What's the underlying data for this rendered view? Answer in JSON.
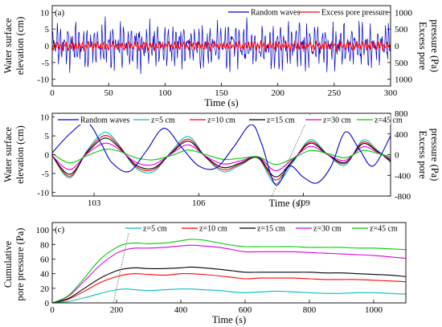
{
  "chart_data": [
    {
      "panel": "(a)",
      "type": "line",
      "xlabel": "Time (s)",
      "ylabel_left": "Water surface elevation (cm)",
      "ylabel_left_lines": [
        "Water surface",
        "elevation (cm)"
      ],
      "ylabel_right": "Excess pore pressure (Pa)",
      "ylabel_right_lines": [
        "Excess pore",
        "pressure (Pa)"
      ],
      "xlim": [
        0,
        300
      ],
      "ylim_left": [
        -12,
        12
      ],
      "ylim_right": [
        1200,
        -1200
      ],
      "xticks": [
        0,
        50,
        100,
        150,
        200,
        250,
        300
      ],
      "yticks_left": [
        -10,
        -5,
        0,
        5,
        10
      ],
      "yticks_right": [
        -1000,
        -500,
        0,
        500,
        1000
      ],
      "ytick_labels_right": [
        "1000",
        "500",
        "0",
        "500",
        "1000"
      ],
      "legend_position": "top-right",
      "series": [
        {
          "name": "Random waves",
          "color": "#0000cc",
          "axis": "left",
          "description": "irregular random waves, amplitude up to ~10 cm"
        },
        {
          "name": "Excess pore pressure",
          "color": "#ff0000",
          "axis": "right",
          "description": "small oscillation around 0, within about ±150 Pa"
        }
      ]
    },
    {
      "panel": "(b)",
      "type": "line",
      "xlabel": "Time (s)",
      "ylabel_left": "Water surface elevation (cm)",
      "ylabel_left_lines": [
        "Water surface",
        "elevation (cm)"
      ],
      "ylabel_right": "Excess pore pressure (Pa)",
      "ylabel_right_lines": [
        "Excess pore",
        "pressure (Pa)"
      ],
      "xlim": [
        101.8,
        111.5
      ],
      "ylim_left": [
        -11,
        11
      ],
      "ylim_right": [
        -800,
        800
      ],
      "xticks": [
        103,
        106,
        109
      ],
      "yticks_left": [
        -10,
        -5,
        0,
        5,
        10
      ],
      "yticks_right": [
        -800,
        -400,
        0,
        400,
        800
      ],
      "legend_position": "top",
      "trend_line": {
        "style": "dotted",
        "from": [
          108.1,
          -11
        ],
        "to": [
          109.2,
          11
        ]
      },
      "wave": {
        "name": "Random waves",
        "color": "#0000cc",
        "axis": "left",
        "x": [
          101.8,
          102.3,
          102.8,
          103.2,
          103.5,
          104.0,
          104.5,
          105.0,
          105.5,
          106.0,
          106.5,
          107.0,
          107.5,
          107.8,
          108.2,
          108.6,
          109.0,
          109.4,
          109.8,
          110.2,
          110.6,
          111.0,
          111.5
        ],
        "y": [
          0.5,
          5.5,
          8.5,
          3.0,
          -2.0,
          -4.5,
          1.0,
          7.0,
          2.0,
          -3.0,
          -3.5,
          2.0,
          8.0,
          3.0,
          -8.0,
          -3.0,
          -6.0,
          -7.5,
          -3.0,
          6.0,
          1.5,
          -3.0,
          5.0
        ]
      },
      "pressure_time": [
        101.8,
        102.3,
        102.8,
        103.3,
        103.7,
        104.2,
        104.7,
        105.2,
        105.7,
        106.2,
        106.7,
        107.2,
        107.7,
        108.2,
        108.7,
        109.2,
        109.7,
        110.2,
        110.7,
        111.1,
        111.5
      ],
      "pressure_series": [
        {
          "name": "z=5 cm",
          "color": "#00c0c0",
          "axis": "right",
          "values": [
            -20,
            -450,
            80,
            430,
            200,
            -260,
            -330,
            50,
            350,
            -50,
            -330,
            -200,
            -70,
            -560,
            -150,
            290,
            0,
            -200,
            280,
            100,
            -150
          ]
        },
        {
          "name": "z=10 cm",
          "color": "#ff0000",
          "axis": "right",
          "values": [
            -20,
            -420,
            60,
            370,
            180,
            -230,
            -290,
            30,
            300,
            -50,
            -290,
            -180,
            -60,
            -490,
            -120,
            250,
            0,
            -170,
            240,
            80,
            -130
          ]
        },
        {
          "name": "z=15 cm",
          "color": "#000000",
          "axis": "right",
          "values": [
            -20,
            -380,
            40,
            320,
            150,
            -200,
            -260,
            20,
            260,
            -40,
            -250,
            -160,
            -50,
            -430,
            -110,
            220,
            0,
            -150,
            210,
            70,
            -110
          ]
        },
        {
          "name": "z=30 cm",
          "color": "#e000e0",
          "axis": "right",
          "values": [
            -20,
            -290,
            20,
            220,
            110,
            -150,
            -190,
            10,
            190,
            -30,
            -180,
            -120,
            -40,
            -310,
            -80,
            160,
            0,
            -110,
            150,
            50,
            -80
          ]
        },
        {
          "name": "z=45 cm",
          "color": "#00cc00",
          "axis": "right",
          "values": [
            20,
            -160,
            -20,
            100,
            70,
            -60,
            -100,
            -20,
            90,
            0,
            -90,
            -70,
            -40,
            -190,
            -70,
            80,
            20,
            -60,
            80,
            30,
            -40
          ]
        }
      ]
    },
    {
      "panel": "(c)",
      "type": "line",
      "xlabel": "Time (s)",
      "ylabel": "Cumulative pore pressure (Pa)",
      "ylabel_lines": [
        "Cumulative",
        "pore pressure (Pa)"
      ],
      "xlim": [
        0,
        1100
      ],
      "ylim": [
        0,
        110
      ],
      "xticks": [
        0,
        200,
        400,
        600,
        800,
        1000
      ],
      "yticks": [
        0,
        20,
        40,
        60,
        80,
        100
      ],
      "legend_position": "top-right",
      "trend_line": {
        "style": "dotted",
        "from": [
          190,
          0
        ],
        "to": [
          245,
          110
        ]
      },
      "x": [
        0,
        50,
        100,
        150,
        200,
        230,
        260,
        300,
        350,
        400,
        430,
        470,
        520,
        560,
        600,
        650,
        700,
        750,
        800,
        850,
        900,
        950,
        1000,
        1050,
        1100
      ],
      "series": [
        {
          "name": "z=5 cm",
          "color": "#00c0c0",
          "values": [
            0,
            2,
            7,
            13,
            18,
            19,
            18,
            17,
            18,
            19,
            19,
            18,
            17,
            15,
            14,
            15,
            16,
            15,
            14,
            13,
            13,
            14,
            14,
            13,
            12
          ]
        },
        {
          "name": "z=10 cm",
          "color": "#ff0000",
          "values": [
            0,
            5,
            16,
            28,
            36,
            39,
            40,
            39,
            38,
            40,
            40,
            39,
            37,
            35,
            33,
            34,
            34,
            34,
            33,
            32,
            32,
            32,
            31,
            30,
            29
          ]
        },
        {
          "name": "z=15 cm",
          "color": "#000000",
          "values": [
            0,
            6,
            20,
            34,
            44,
            47,
            48,
            47,
            47,
            48,
            49,
            48,
            46,
            44,
            42,
            42,
            42,
            42,
            42,
            41,
            41,
            40,
            39,
            38,
            36
          ]
        },
        {
          "name": "z=30 cm",
          "color": "#e000e0",
          "values": [
            0,
            9,
            30,
            52,
            68,
            73,
            75,
            75,
            76,
            78,
            79,
            78,
            76,
            73,
            70,
            70,
            70,
            70,
            69,
            68,
            67,
            66,
            65,
            63,
            61
          ]
        },
        {
          "name": "z=45 cm",
          "color": "#00cc00",
          "values": [
            0,
            10,
            34,
            60,
            76,
            81,
            82,
            81,
            82,
            85,
            87,
            86,
            82,
            79,
            77,
            77,
            77,
            77,
            76,
            76,
            76,
            75,
            75,
            74,
            73
          ]
        }
      ]
    }
  ]
}
